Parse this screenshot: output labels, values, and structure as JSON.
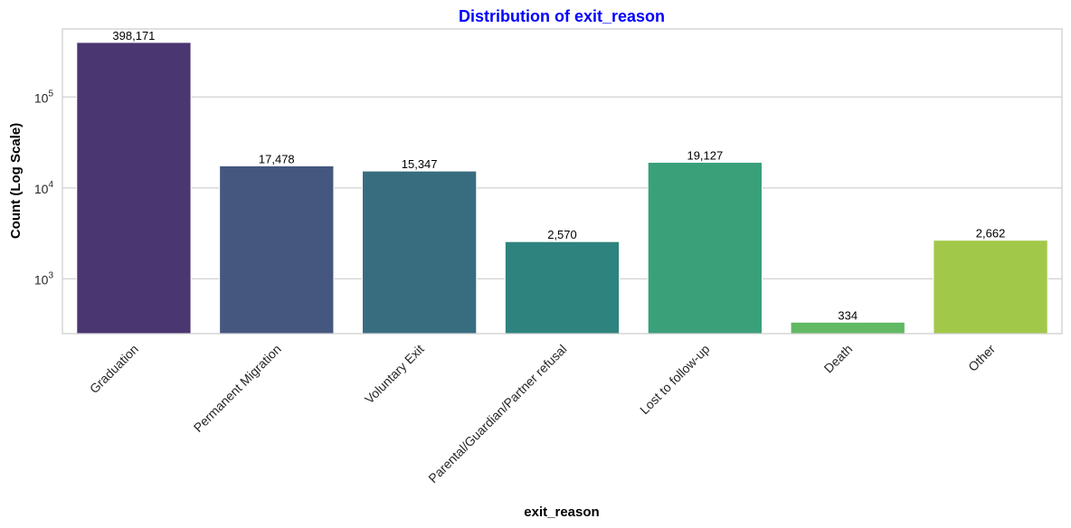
{
  "chart_data": {
    "type": "bar",
    "title": "Distribution of exit_reason",
    "title_color": "#0000ff",
    "xlabel": "exit_reason",
    "ylabel": "Count (Log Scale)",
    "y_scale": "log",
    "ylim": [
      250,
      560000
    ],
    "y_ticks": [
      {
        "value": 1000,
        "base": "10",
        "exp": "3"
      },
      {
        "value": 10000,
        "base": "10",
        "exp": "4"
      },
      {
        "value": 100000,
        "base": "10",
        "exp": "5"
      }
    ],
    "grid": true,
    "categories": [
      "Graduation",
      "Permanent Migration",
      "Voluntary Exit",
      "Parental/Guardian/Partner refusal",
      "Lost to follow-up",
      "Death",
      "Other"
    ],
    "values": [
      398171,
      17478,
      15347,
      2570,
      19127,
      334,
      2662
    ],
    "value_labels": [
      "398,171",
      "17,478",
      "15,347",
      "2,570",
      "19,127",
      "334",
      "2,662"
    ],
    "colors": [
      "#4a3671",
      "#45577f",
      "#386d80",
      "#2e837e",
      "#3aa07a",
      "#62b964",
      "#a2c84a"
    ]
  }
}
